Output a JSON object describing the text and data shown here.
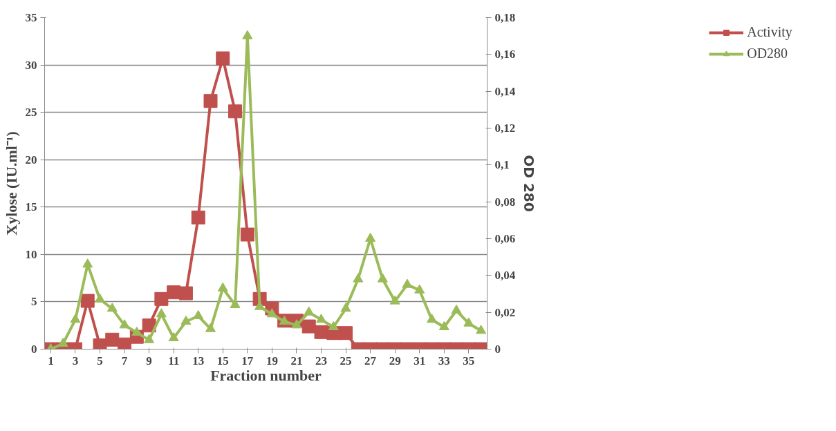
{
  "chart_data": {
    "type": "line",
    "xlabel": "Fraction number",
    "ylabel": "Xylose (IU.ml⁻¹)",
    "y2label": "OD 280",
    "x": [
      1,
      2,
      3,
      4,
      5,
      6,
      7,
      8,
      9,
      10,
      11,
      12,
      13,
      14,
      15,
      16,
      17,
      18,
      19,
      20,
      21,
      22,
      23,
      24,
      25,
      26,
      27,
      28,
      29,
      30,
      31,
      32,
      33,
      34,
      35,
      36
    ],
    "xlim": [
      0.5,
      36.5
    ],
    "xticks": [
      1,
      3,
      5,
      7,
      9,
      11,
      13,
      15,
      17,
      19,
      21,
      23,
      25,
      27,
      29,
      31,
      33,
      35
    ],
    "ylim": [
      0,
      35
    ],
    "yticks": [
      0,
      5,
      10,
      15,
      20,
      25,
      30,
      35
    ],
    "y2lim": [
      0,
      0.18
    ],
    "y2ticks": [
      {
        "value": 0,
        "label": "0"
      },
      {
        "value": 0.02,
        "label": "0,02"
      },
      {
        "value": 0.04,
        "label": "0,04"
      },
      {
        "value": 0.06,
        "label": "0,06"
      },
      {
        "value": 0.08,
        "label": "0,08"
      },
      {
        "value": 0.1,
        "label": "0,1"
      },
      {
        "value": 0.12,
        "label": "0,12"
      },
      {
        "value": 0.14,
        "label": "0,14"
      },
      {
        "value": 0.16,
        "label": "0,16"
      },
      {
        "value": 0.18,
        "label": "0,18"
      }
    ],
    "grid": "y",
    "legend": "right",
    "series": [
      {
        "name": "Activity",
        "color": "#c0504d",
        "marker": "square",
        "values": [
          0,
          0,
          0,
          5.1,
          0.4,
          1.0,
          0.5,
          1.3,
          2.5,
          5.3,
          6.0,
          5.9,
          13.9,
          26.2,
          30.7,
          25.1,
          12.1,
          5.3,
          4.3,
          3.0,
          3.0,
          2.4,
          1.8,
          1.7,
          1.7,
          0,
          0,
          0,
          0,
          0,
          0,
          0,
          0,
          0,
          0,
          0
        ]
      },
      {
        "name": "OD280",
        "color": "#9bbb59",
        "marker": "triangle",
        "axis": "y2",
        "values": [
          0,
          0.003,
          0.016,
          0.046,
          0.027,
          0.022,
          0.013,
          0.009,
          0.005,
          0.019,
          0.006,
          0.015,
          0.018,
          0.011,
          0.033,
          0.024,
          0.17,
          0.023,
          0.019,
          0.015,
          0.013,
          0.02,
          0.016,
          0.012,
          0.022,
          0.038,
          0.06,
          0.038,
          0.026,
          0.035,
          0.032,
          0.016,
          0.012,
          0.021,
          0.014,
          0.01
        ]
      }
    ]
  }
}
